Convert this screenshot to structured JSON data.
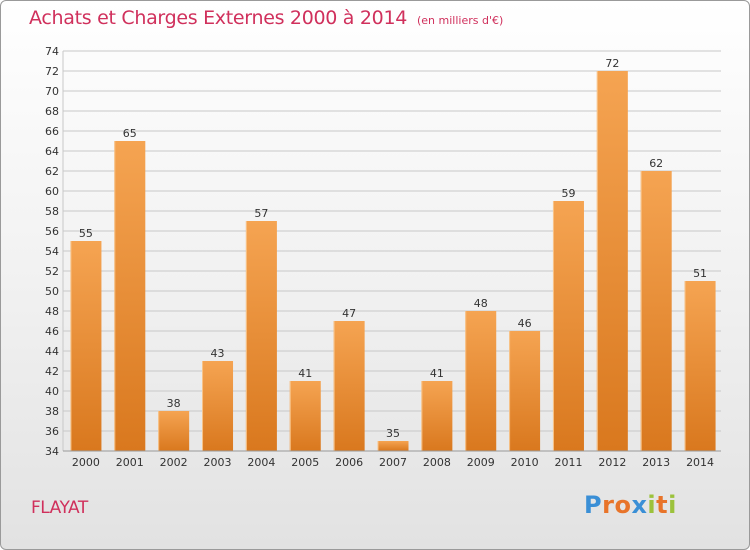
{
  "header": {
    "title": "Achats et Charges Externes 2000 à 2014",
    "subtitle": "(en milliers d'€)"
  },
  "footer": {
    "place": "FLAYAT",
    "brand": {
      "text": "Proxiti",
      "letters": [
        {
          "ch": "P",
          "color": "#3a8fd6"
        },
        {
          "ch": "r",
          "color": "#e8742a"
        },
        {
          "ch": "o",
          "color": "#e8742a"
        },
        {
          "ch": "x",
          "color": "#3a8fd6"
        },
        {
          "ch": "i",
          "color": "#9cc23c"
        },
        {
          "ch": "t",
          "color": "#e8742a"
        },
        {
          "ch": "i",
          "color": "#9cc23c"
        }
      ]
    }
  },
  "colors": {
    "title": "#d0305c",
    "bar_top": "#f5a452",
    "bar_bottom": "#d9781e",
    "grid": "#c8c8c8",
    "axis_text": "#333333"
  },
  "chart_data": {
    "type": "bar",
    "title": "Achats et Charges Externes 2000 à 2014",
    "subtitle": "(en milliers d'€)",
    "categories": [
      "2000",
      "2001",
      "2002",
      "2003",
      "2004",
      "2005",
      "2006",
      "2007",
      "2008",
      "2009",
      "2010",
      "2011",
      "2012",
      "2013",
      "2014"
    ],
    "values": [
      55,
      65,
      38,
      43,
      57,
      41,
      47,
      35,
      41,
      48,
      46,
      59,
      72,
      62,
      51
    ],
    "ylim": [
      34,
      74
    ],
    "yticks": [
      34,
      36,
      38,
      40,
      42,
      44,
      46,
      48,
      50,
      52,
      54,
      56,
      58,
      60,
      62,
      64,
      66,
      68,
      70,
      72,
      74
    ],
    "grid": true,
    "data_labels": true
  }
}
